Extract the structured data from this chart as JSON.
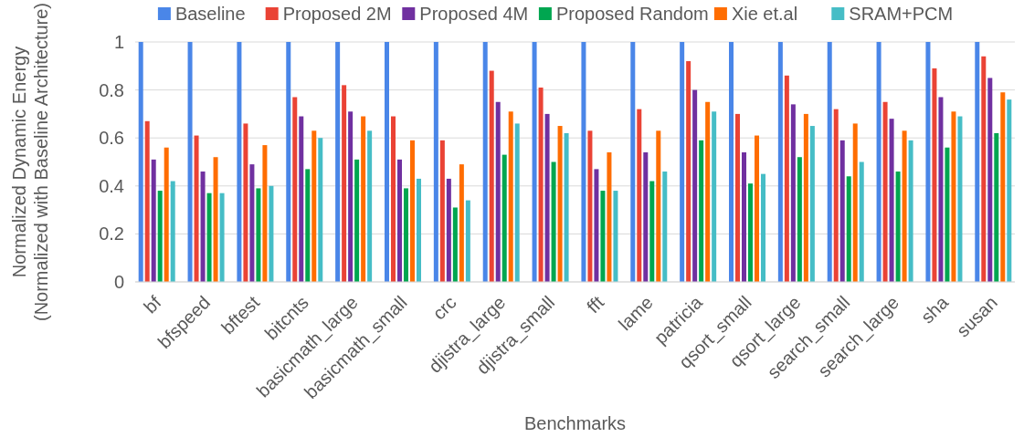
{
  "chart_data": {
    "type": "bar",
    "xlabel": "Benchmarks",
    "ylabel": "Normalized Dynamic Energy\n(Normalized with Baseline Architecture)",
    "categories": [
      "bf",
      "bfspeed",
      "bftest",
      "bitcnts",
      "basicmath_large",
      "basicmath_small",
      "crc",
      "djistra_large",
      "djistra_small",
      "fft",
      "lame",
      "patricia",
      "qsort_small",
      "qsort_large",
      "search_small",
      "search_large",
      "sha",
      "susan"
    ],
    "series": [
      {
        "name": "Baseline",
        "color": "#4a86e8",
        "values": [
          1,
          1,
          1,
          1,
          1,
          1,
          1,
          1,
          1,
          1,
          1,
          1,
          1,
          1,
          1,
          1,
          1,
          1
        ]
      },
      {
        "name": "Proposed 2M",
        "color": "#ea4335",
        "values": [
          0.67,
          0.61,
          0.66,
          0.77,
          0.82,
          0.69,
          0.59,
          0.88,
          0.81,
          0.63,
          0.72,
          0.92,
          0.7,
          0.86,
          0.72,
          0.75,
          0.89,
          0.94
        ]
      },
      {
        "name": "Proposed 4M",
        "color": "#7030a0",
        "values": [
          0.51,
          0.46,
          0.49,
          0.69,
          0.71,
          0.51,
          0.43,
          0.75,
          0.7,
          0.47,
          0.54,
          0.8,
          0.54,
          0.74,
          0.59,
          0.68,
          0.77,
          0.85
        ]
      },
      {
        "name": "Proposed Random",
        "color": "#00a650",
        "values": [
          0.38,
          0.37,
          0.39,
          0.47,
          0.51,
          0.39,
          0.31,
          0.53,
          0.5,
          0.38,
          0.42,
          0.59,
          0.41,
          0.52,
          0.44,
          0.46,
          0.56,
          0.62
        ]
      },
      {
        "name": "Xie et.al",
        "color": "#ff6d01",
        "values": [
          0.56,
          0.52,
          0.57,
          0.63,
          0.69,
          0.59,
          0.49,
          0.71,
          0.65,
          0.54,
          0.63,
          0.75,
          0.61,
          0.7,
          0.66,
          0.63,
          0.71,
          0.79
        ]
      },
      {
        "name": "SRAM+PCM",
        "color": "#46bdc6",
        "values": [
          0.42,
          0.37,
          0.4,
          0.6,
          0.63,
          0.43,
          0.34,
          0.66,
          0.62,
          0.38,
          0.46,
          0.71,
          0.45,
          0.65,
          0.5,
          0.59,
          0.69,
          0.76
        ]
      }
    ],
    "ylim": [
      0,
      1
    ],
    "yticks": [
      0,
      0.2,
      0.4,
      0.6,
      0.8,
      1
    ],
    "grid": "y",
    "legend": "top"
  }
}
